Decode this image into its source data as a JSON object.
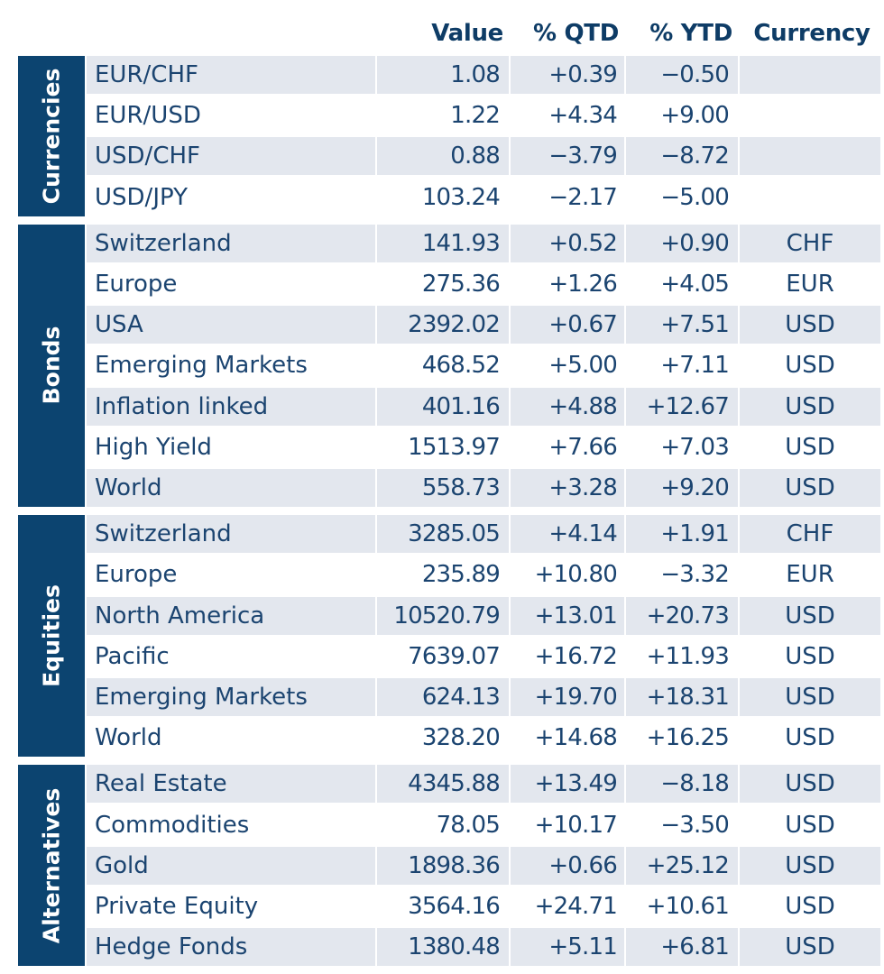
{
  "headers": {
    "value": "Value",
    "qtd": "% QTD",
    "ytd": "% YTD",
    "currency": "Currency"
  },
  "sections": [
    {
      "label": "Currencies",
      "rows": [
        {
          "name": "EUR/CHF",
          "value": "1.08",
          "qtd": "+0.39",
          "ytd": "−0.50",
          "currency": ""
        },
        {
          "name": "EUR/USD",
          "value": "1.22",
          "qtd": "+4.34",
          "ytd": "+9.00",
          "currency": ""
        },
        {
          "name": "USD/CHF",
          "value": "0.88",
          "qtd": "−3.79",
          "ytd": "−8.72",
          "currency": ""
        },
        {
          "name": "USD/JPY",
          "value": "103.24",
          "qtd": "−2.17",
          "ytd": "−5.00",
          "currency": ""
        }
      ]
    },
    {
      "label": "Bonds",
      "rows": [
        {
          "name": "Switzerland",
          "value": "141.93",
          "qtd": "+0.52",
          "ytd": "+0.90",
          "currency": "CHF"
        },
        {
          "name": "Europe",
          "value": "275.36",
          "qtd": "+1.26",
          "ytd": "+4.05",
          "currency": "EUR"
        },
        {
          "name": "USA",
          "value": "2392.02",
          "qtd": "+0.67",
          "ytd": "+7.51",
          "currency": "USD"
        },
        {
          "name": "Emerging Markets",
          "value": "468.52",
          "qtd": "+5.00",
          "ytd": "+7.11",
          "currency": "USD"
        },
        {
          "name": "Inflation linked",
          "value": "401.16",
          "qtd": "+4.88",
          "ytd": "+12.67",
          "currency": "USD"
        },
        {
          "name": "High Yield",
          "value": "1513.97",
          "qtd": "+7.66",
          "ytd": "+7.03",
          "currency": "USD"
        },
        {
          "name": "World",
          "value": "558.73",
          "qtd": "+3.28",
          "ytd": "+9.20",
          "currency": "USD"
        }
      ]
    },
    {
      "label": "Equities",
      "rows": [
        {
          "name": "Switzerland",
          "value": "3285.05",
          "qtd": "+4.14",
          "ytd": "+1.91",
          "currency": "CHF"
        },
        {
          "name": "Europe",
          "value": "235.89",
          "qtd": "+10.80",
          "ytd": "−3.32",
          "currency": "EUR"
        },
        {
          "name": "North America",
          "value": "10520.79",
          "qtd": "+13.01",
          "ytd": "+20.73",
          "currency": "USD"
        },
        {
          "name": "Pacific",
          "value": "7639.07",
          "qtd": "+16.72",
          "ytd": "+11.93",
          "currency": "USD"
        },
        {
          "name": "Emerging Markets",
          "value": "624.13",
          "qtd": "+19.70",
          "ytd": "+18.31",
          "currency": "USD"
        },
        {
          "name": "World",
          "value": "328.20",
          "qtd": "+14.68",
          "ytd": "+16.25",
          "currency": "USD"
        }
      ]
    },
    {
      "label": "Alternatives",
      "rows": [
        {
          "name": "Real Estate",
          "value": "4345.88",
          "qtd": "+13.49",
          "ytd": "−8.18",
          "currency": "USD"
        },
        {
          "name": "Commodities",
          "value": "78.05",
          "qtd": "+10.17",
          "ytd": "−3.50",
          "currency": "USD"
        },
        {
          "name": "Gold",
          "value": "1898.36",
          "qtd": "+0.66",
          "ytd": "+25.12",
          "currency": "USD"
        },
        {
          "name": "Private Equity",
          "value": "3564.16",
          "qtd": "+24.71",
          "ytd": "+10.61",
          "currency": "USD"
        },
        {
          "name": "Hedge Fonds",
          "value": "1380.48",
          "qtd": "+5.11",
          "ytd": "+6.81",
          "currency": "USD"
        }
      ]
    }
  ],
  "colors": {
    "navy": "#0c4470",
    "header_text": "#0e3c66",
    "cell_text": "#1b4470",
    "row_shade": "#e3e7ee"
  },
  "chart_data": {
    "type": "table",
    "columns": [
      "Value",
      "% QTD",
      "% YTD",
      "Currency"
    ]
  }
}
